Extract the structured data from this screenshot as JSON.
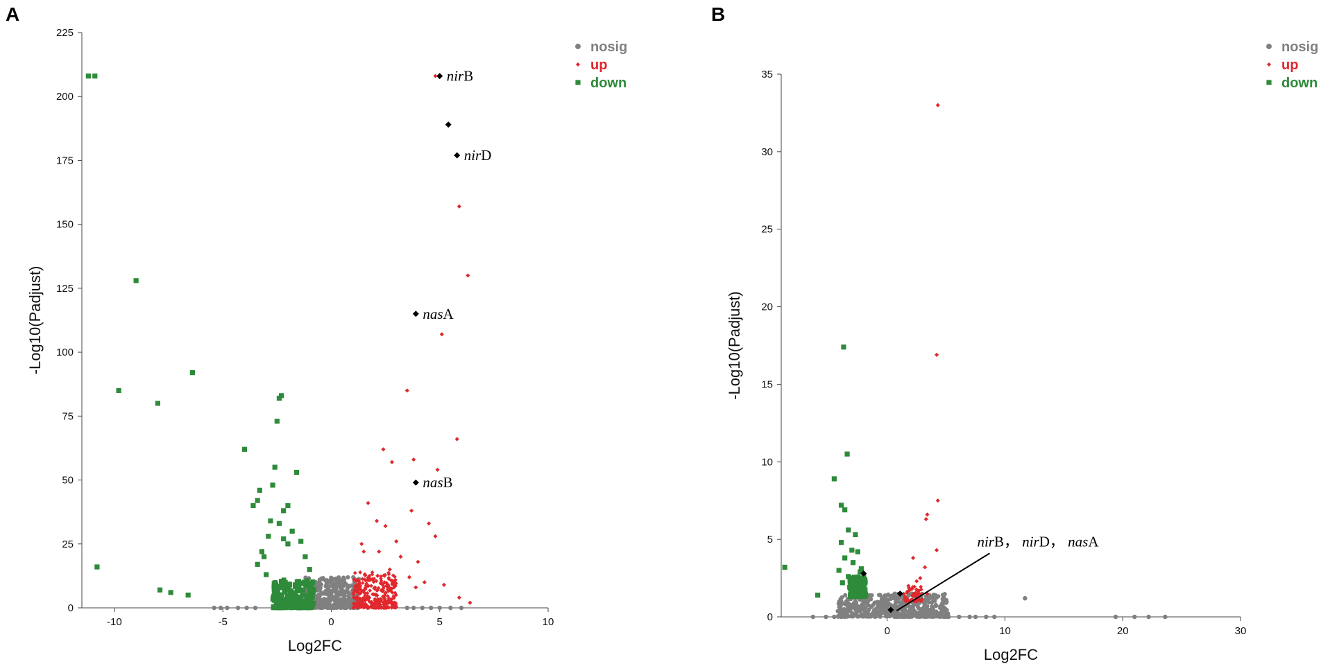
{
  "figure": {
    "panel_a_label": "A",
    "panel_b_label": "B"
  },
  "chart_data": [
    {
      "type": "scatter",
      "panel": "A",
      "title": "",
      "xlabel": "Log2FC",
      "ylabel": "-Log10(Padjust)",
      "xlim": [
        -11.5,
        10
      ],
      "ylim": [
        0,
        225
      ],
      "xticks": [
        "-10",
        "-5",
        "0",
        "5",
        "10"
      ],
      "yticks": [
        "0",
        "25",
        "50",
        "75",
        "100",
        "125",
        "150",
        "175",
        "200",
        "225"
      ],
      "legend": {
        "position": "top-right",
        "entries": [
          {
            "label": "nosig",
            "color": "#808080",
            "shape": "circle"
          },
          {
            "label": "up",
            "color": "#e0282e",
            "shape": "diamond"
          },
          {
            "label": "down",
            "color": "#2e8b3a",
            "shape": "square"
          }
        ]
      },
      "series": [
        {
          "name": "down",
          "color": "#2e8b3a",
          "shape": "square",
          "points": [
            [
              -11.2,
              208
            ],
            [
              -10.9,
              208
            ],
            [
              -10.8,
              16
            ],
            [
              -9.8,
              85
            ],
            [
              -9.0,
              128
            ],
            [
              -8.0,
              80
            ],
            [
              -7.9,
              7
            ],
            [
              -7.4,
              6
            ],
            [
              -6.6,
              5
            ],
            [
              -6.4,
              92
            ],
            [
              -4.0,
              62
            ],
            [
              -3.6,
              40
            ],
            [
              -3.4,
              42
            ],
            [
              -3.3,
              46
            ],
            [
              -3.1,
              20
            ],
            [
              -3.0,
              13
            ],
            [
              -2.9,
              28
            ],
            [
              -2.8,
              34
            ],
            [
              -2.7,
              48
            ],
            [
              -2.6,
              55
            ],
            [
              -2.5,
              73
            ],
            [
              -2.4,
              82
            ],
            [
              -2.3,
              83
            ],
            [
              -2.2,
              38
            ],
            [
              -2.0,
              40
            ],
            [
              -1.8,
              30
            ],
            [
              -1.6,
              53
            ],
            [
              -1.4,
              26
            ],
            [
              -1.2,
              20
            ],
            [
              -1.0,
              15
            ],
            [
              -3.2,
              22
            ],
            [
              -3.4,
              17
            ],
            [
              -2.4,
              33
            ],
            [
              -2.2,
              27
            ],
            [
              -2.0,
              25
            ]
          ],
          "cluster": {
            "x_range": [
              -2.7,
              -0.8
            ],
            "y_range": [
              0,
              11
            ],
            "count": 260
          }
        },
        {
          "name": "up",
          "color": "#e0282e",
          "shape": "diamond",
          "points": [
            [
              4.8,
              208
            ],
            [
              5.9,
              157
            ],
            [
              6.3,
              130
            ],
            [
              5.1,
              107
            ],
            [
              3.5,
              85
            ],
            [
              5.8,
              66
            ],
            [
              3.8,
              58
            ],
            [
              4.9,
              54
            ],
            [
              2.4,
              62
            ],
            [
              2.8,
              57
            ],
            [
              3.7,
              38
            ],
            [
              1.7,
              41
            ],
            [
              2.1,
              34
            ],
            [
              2.5,
              32
            ],
            [
              4.5,
              33
            ],
            [
              4.8,
              28
            ],
            [
              3.0,
              26
            ],
            [
              2.2,
              22
            ],
            [
              1.4,
              25
            ],
            [
              3.2,
              20
            ],
            [
              4.0,
              18
            ],
            [
              1.5,
              22
            ],
            [
              2.7,
              15
            ],
            [
              3.6,
              12
            ],
            [
              4.3,
              10
            ],
            [
              5.2,
              9
            ],
            [
              5.9,
              4
            ],
            [
              6.4,
              2
            ],
            [
              3.9,
              8
            ],
            [
              2.9,
              9
            ]
          ],
          "cluster": {
            "x_range": [
              1.0,
              3.0
            ],
            "y_range": [
              0,
              14
            ],
            "count": 300
          }
        },
        {
          "name": "nosig",
          "color": "#808080",
          "shape": "circle",
          "points": [
            [
              -5.4,
              0
            ],
            [
              -5.1,
              0
            ],
            [
              -4.8,
              0
            ],
            [
              -4.3,
              0
            ],
            [
              -3.9,
              0
            ],
            [
              -3.5,
              0
            ],
            [
              3.5,
              0
            ],
            [
              3.8,
              0
            ],
            [
              4.2,
              0
            ],
            [
              4.6,
              0
            ],
            [
              5.0,
              0
            ],
            [
              5.5,
              0
            ],
            [
              6.0,
              0
            ]
          ],
          "cluster": {
            "x_range": [
              -1.3,
              1.3
            ],
            "y_range": [
              0,
              12
            ],
            "count": 420
          }
        }
      ],
      "highlighted_genes": [
        {
          "gene_italic": "nir",
          "gene_suffix": "B",
          "x": 5.0,
          "y": 208
        },
        {
          "gene_italic": "",
          "gene_suffix": "",
          "x": 5.4,
          "y": 189
        },
        {
          "gene_italic": "nir",
          "gene_suffix": "D",
          "x": 5.8,
          "y": 177
        },
        {
          "gene_italic": "nas",
          "gene_suffix": "A",
          "x": 3.9,
          "y": 115
        },
        {
          "gene_italic": "nas",
          "gene_suffix": "B",
          "x": 3.9,
          "y": 49
        }
      ]
    },
    {
      "type": "scatter",
      "panel": "B",
      "title": "",
      "xlabel": "Log2FC",
      "ylabel": "-Log10(Padjust)",
      "xlim": [
        -9,
        30
      ],
      "ylim": [
        0,
        35
      ],
      "xticks": [
        "0",
        "10",
        "20",
        "30"
      ],
      "yticks": [
        "0",
        "5",
        "10",
        "15",
        "20",
        "25",
        "30",
        "35"
      ],
      "legend": {
        "position": "top-right",
        "entries": [
          {
            "label": "nosig",
            "color": "#808080",
            "shape": "circle"
          },
          {
            "label": "up",
            "color": "#e0282e",
            "shape": "diamond"
          },
          {
            "label": "down",
            "color": "#2e8b3a",
            "shape": "square"
          }
        ]
      },
      "series": [
        {
          "name": "down",
          "color": "#2e8b3a",
          "shape": "square",
          "points": [
            [
              -8.7,
              3.2
            ],
            [
              -5.9,
              1.4
            ],
            [
              -3.7,
              17.4
            ],
            [
              -3.4,
              10.5
            ],
            [
              -4.5,
              8.9
            ],
            [
              -3.9,
              7.2
            ],
            [
              -3.6,
              6.9
            ],
            [
              -3.3,
              5.6
            ],
            [
              -2.7,
              5.3
            ],
            [
              -3.9,
              4.8
            ],
            [
              -3.0,
              4.3
            ],
            [
              -2.5,
              4.2
            ],
            [
              -3.6,
              3.8
            ],
            [
              -2.9,
              3.5
            ],
            [
              -2.2,
              3.1
            ],
            [
              -4.1,
              3.0
            ],
            [
              -3.3,
              2.6
            ],
            [
              -2.6,
              2.4
            ],
            [
              -3.8,
              2.2
            ],
            [
              -2.3,
              2.9
            ]
          ],
          "cluster": {
            "x_range": [
              -3.2,
              -1.8
            ],
            "y_range": [
              1.3,
              2.6
            ],
            "count": 150
          }
        },
        {
          "name": "up",
          "color": "#e0282e",
          "shape": "diamond",
          "points": [
            [
              4.3,
              33.0
            ],
            [
              4.2,
              16.9
            ],
            [
              4.3,
              7.5
            ],
            [
              3.4,
              6.6
            ],
            [
              3.3,
              6.3
            ],
            [
              4.2,
              4.3
            ],
            [
              2.2,
              3.8
            ],
            [
              3.2,
              3.2
            ],
            [
              2.8,
              2.5
            ],
            [
              2.5,
              2.3
            ],
            [
              1.8,
              2.0
            ],
            [
              2.1,
              1.8
            ],
            [
              2.7,
              1.7
            ],
            [
              3.4,
              1.5
            ],
            [
              2.4,
              1.3
            ]
          ],
          "cluster": {
            "x_range": [
              1.4,
              3.0
            ],
            "y_range": [
              1.0,
              2.0
            ],
            "count": 50
          }
        },
        {
          "name": "nosig",
          "color": "#808080",
          "shape": "circle",
          "points": [
            [
              -6.3,
              0
            ],
            [
              -5.2,
              0
            ],
            [
              -4.5,
              0
            ],
            [
              -3.9,
              0
            ],
            [
              5.2,
              0
            ],
            [
              6.1,
              0
            ],
            [
              7.0,
              0
            ],
            [
              7.5,
              0
            ],
            [
              8.4,
              0
            ],
            [
              9.1,
              0
            ],
            [
              11.7,
              1.2
            ],
            [
              19.4,
              0
            ],
            [
              21.0,
              0
            ],
            [
              22.2,
              0
            ],
            [
              23.6,
              0
            ]
          ],
          "cluster": {
            "x_range": [
              -4.2,
              5.2
            ],
            "y_range": [
              0,
              1.5
            ],
            "count": 520
          }
        }
      ],
      "highlighted_genes": [
        {
          "x": -2.0,
          "y": 2.8
        },
        {
          "x": 0.3,
          "y": 0.45
        },
        {
          "x": 1.1,
          "y": 1.5
        }
      ],
      "annotation": {
        "parts": [
          {
            "italic": "nir",
            "normal": "B，"
          },
          {
            "italic": "nir",
            "normal": "D，"
          },
          {
            "italic": "nas",
            "normal": "A"
          }
        ],
        "arrow_from": [
          8.7,
          4.1
        ],
        "arrow_to": [
          0.8,
          0.4
        ]
      }
    }
  ]
}
